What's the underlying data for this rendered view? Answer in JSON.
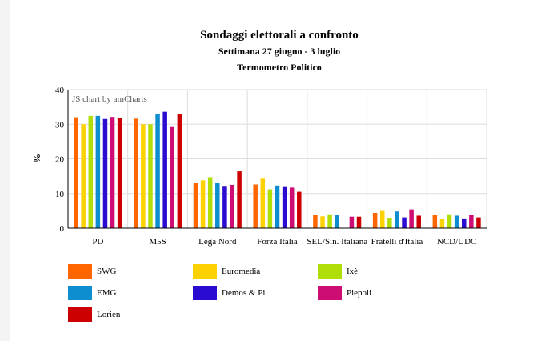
{
  "chart_data": {
    "type": "bar",
    "title": "Sondaggi elettorali a confronto",
    "subtitle": "Settimana 27 giugno - 3 luglio",
    "subtitle2": "Termometro Politico",
    "watermark": "JS chart by amCharts",
    "ylabel": "%",
    "ylim": [
      0,
      40
    ],
    "yticks": [
      "0",
      "10",
      "20",
      "30",
      "40"
    ],
    "grid": true,
    "legend_position": "bottom",
    "categories": [
      "PD",
      "M5S",
      "Lega Nord",
      "Forza Italia",
      "SEL/Sin. Italiana",
      "Fratelli d'Italia",
      "NCD/UDC"
    ],
    "series": [
      {
        "name": "SWG",
        "color": "#ff6600",
        "values": [
          32.0,
          31.6,
          13.1,
          12.6,
          3.9,
          4.4,
          3.9
        ]
      },
      {
        "name": "Euromedia",
        "color": "#fcd202",
        "values": [
          30.0,
          30.0,
          13.8,
          14.5,
          3.4,
          5.2,
          2.6
        ]
      },
      {
        "name": "Ixè",
        "color": "#b0de09",
        "values": [
          32.4,
          30.0,
          14.7,
          11.2,
          4.0,
          3.0,
          4.0
        ]
      },
      {
        "name": "EMG",
        "color": "#0d8ecf",
        "values": [
          32.4,
          33.0,
          13.1,
          12.3,
          3.8,
          4.8,
          3.6
        ]
      },
      {
        "name": "Demos & Pi",
        "color": "#2a0cd0",
        "values": [
          31.5,
          33.6,
          12.2,
          12.1,
          0,
          3.1,
          2.8
        ]
      },
      {
        "name": "Piepoli",
        "color": "#cd0d74",
        "values": [
          32.1,
          29.2,
          12.5,
          11.7,
          3.3,
          5.4,
          3.8
        ]
      },
      {
        "name": "Lorien",
        "color": "#cc0000",
        "values": [
          31.7,
          32.9,
          16.4,
          10.5,
          3.3,
          3.6,
          3.1
        ]
      }
    ]
  }
}
